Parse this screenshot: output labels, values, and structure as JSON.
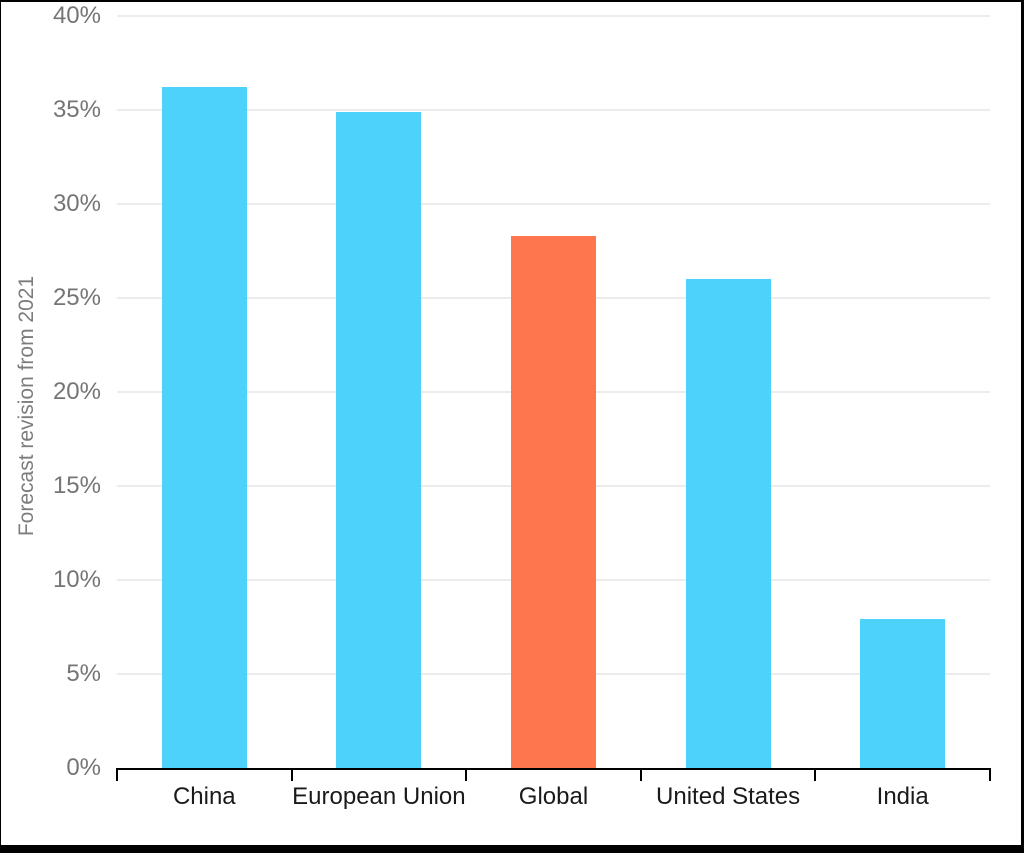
{
  "chart_data": {
    "type": "bar",
    "categories": [
      "China",
      "European Union",
      "Global",
      "United States",
      "India"
    ],
    "values": [
      36.2,
      34.9,
      28.3,
      26.0,
      7.9
    ],
    "unit": "%",
    "title": "",
    "xlabel": "",
    "ylabel": "Forecast revision from 2021",
    "ylim": [
      0,
      40
    ],
    "ytick_step": 5,
    "ytick_labels": [
      "0%",
      "5%",
      "10%",
      "15%",
      "20%",
      "25%",
      "30%",
      "35%",
      "40%"
    ],
    "grid": true,
    "legend": "none",
    "bar_colors": [
      "#4DD2FC",
      "#4DD2FC",
      "#FD764D",
      "#4DD2FC",
      "#4DD2FC"
    ],
    "highlight_category": "Global",
    "colors": {
      "default_bar": "#4DD2FC",
      "highlight_bar": "#FD764D",
      "gridline": "#ECECEC",
      "axis": "#000000",
      "tick_label": "#757575",
      "axis_title": "#7C7C7C",
      "category_label": "#1A1A1A",
      "background": "#FFFFFF",
      "frame": "#000000"
    }
  }
}
